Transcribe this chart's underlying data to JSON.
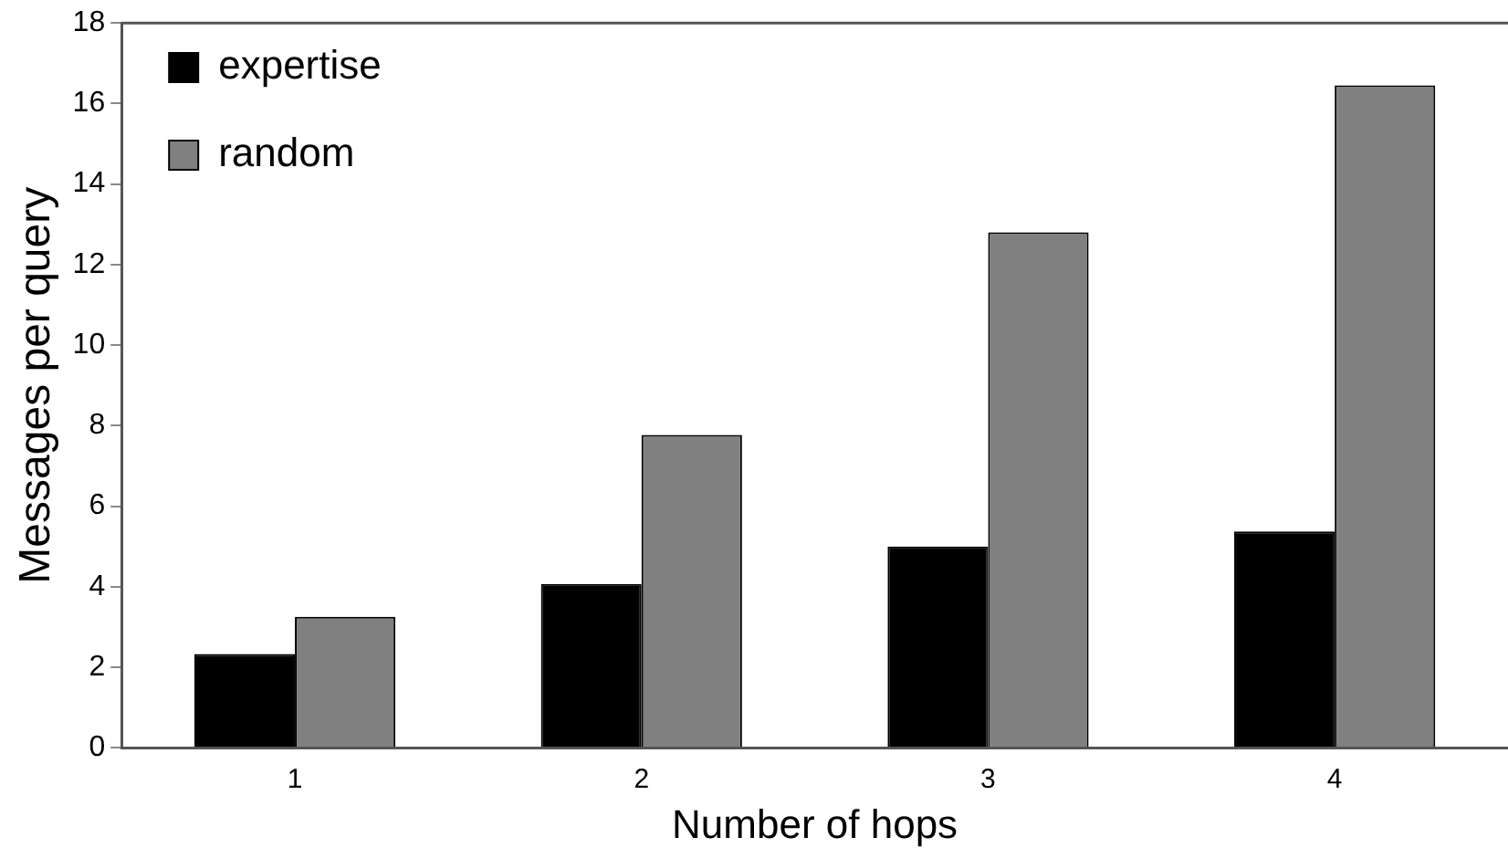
{
  "chart_data": {
    "type": "bar",
    "xlabel": "Number of hops",
    "ylabel": "Messages per query",
    "categories": [
      "1",
      "2",
      "3",
      "4"
    ],
    "series": [
      {
        "name": "expertise",
        "color": "#000000",
        "values": [
          2.33,
          4.07,
          5.0,
          5.37
        ]
      },
      {
        "name": "random",
        "color": "#808080",
        "values": [
          3.25,
          7.77,
          12.8,
          16.45
        ]
      }
    ],
    "ylim": [
      0,
      18
    ],
    "yticks": [
      0,
      2,
      4,
      6,
      8,
      10,
      12,
      14,
      16,
      18
    ],
    "grid": false,
    "legend": "top left"
  }
}
